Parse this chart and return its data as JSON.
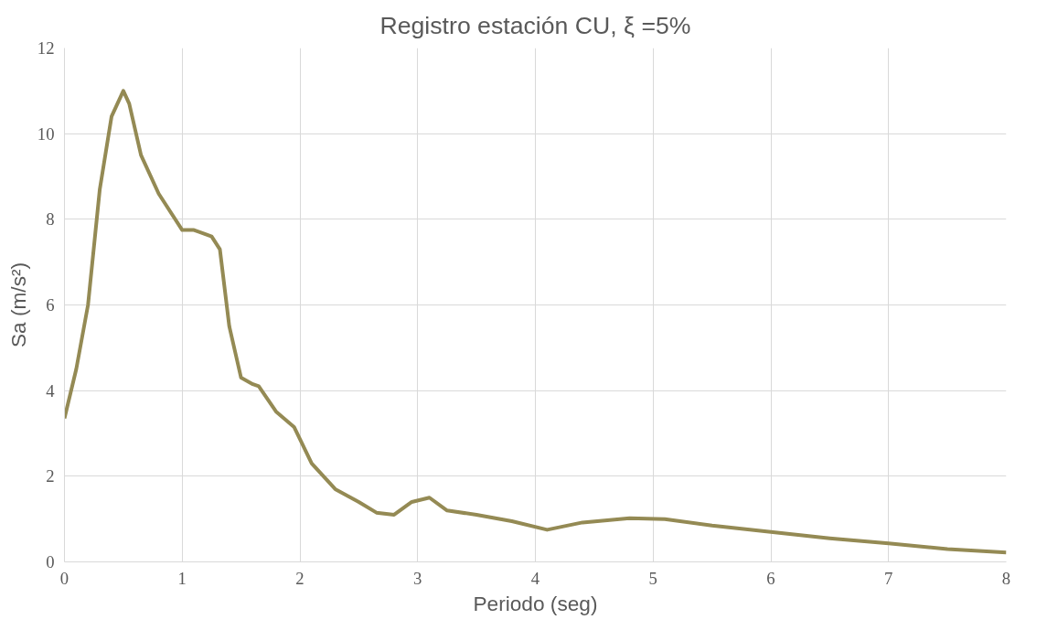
{
  "chart_data": {
    "type": "line",
    "title": "Registro estación CU, ξ =5%",
    "xlabel": "Periodo (seg)",
    "ylabel": "Sa (m/s²)",
    "xlim": [
      0,
      8
    ],
    "xticks": [
      0,
      1,
      2,
      3,
      4,
      5,
      6,
      7,
      8
    ],
    "ylim": [
      0,
      12
    ],
    "yticks": [
      0,
      2,
      4,
      6,
      8,
      10,
      12
    ],
    "grid": true,
    "marker": "none",
    "line_style": "solid",
    "series": [
      {
        "color": "#948a54",
        "x": [
          0,
          0.1,
          0.2,
          0.3,
          0.4,
          0.5,
          0.55,
          0.65,
          0.8,
          1.0,
          1.1,
          1.25,
          1.32,
          1.4,
          1.5,
          1.6,
          1.65,
          1.8,
          1.95,
          2.1,
          2.3,
          2.5,
          2.65,
          2.8,
          2.95,
          3.1,
          3.25,
          3.5,
          3.8,
          4.1,
          4.4,
          4.8,
          5.1,
          5.5,
          6.0,
          6.5,
          7.0,
          7.5,
          8.0
        ],
        "values": [
          3.35,
          4.5,
          6.0,
          8.7,
          10.4,
          11.0,
          10.7,
          9.5,
          8.6,
          7.75,
          7.75,
          7.6,
          7.3,
          5.5,
          4.3,
          4.15,
          4.1,
          3.5,
          3.15,
          2.3,
          1.7,
          1.4,
          1.15,
          1.1,
          1.4,
          1.5,
          1.2,
          1.1,
          0.95,
          0.75,
          0.92,
          1.02,
          1.0,
          0.85,
          0.7,
          0.55,
          0.43,
          0.3,
          0.22
        ]
      }
    ]
  }
}
